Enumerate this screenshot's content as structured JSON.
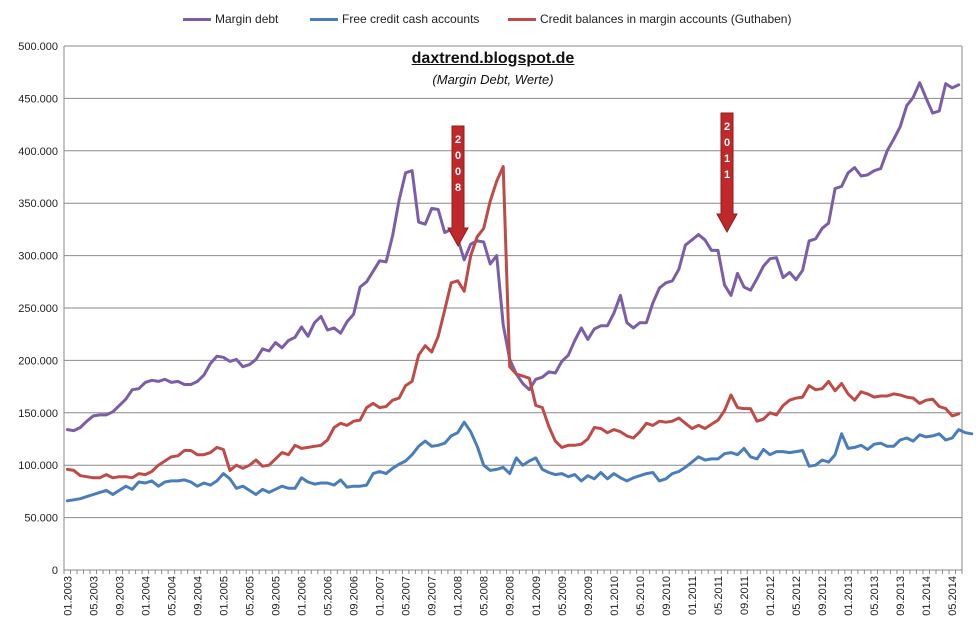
{
  "legend": [
    {
      "name": "Margin debt",
      "color": "#7B5EA7"
    },
    {
      "name": "Free credit cash accounts",
      "color": "#4A7EBB"
    },
    {
      "name": "Credit balances in margin accounts (Guthaben)",
      "color": "#BE4B48"
    }
  ],
  "annotations": {
    "arrow_2008": "2008",
    "arrow_2011": "2011"
  },
  "chart_data": {
    "type": "line",
    "title": "daxtrend.blogspot.de",
    "subtitle": "(Margin Debt, Werte)",
    "ylim": [
      0,
      500000
    ],
    "y_ticks": [
      "0",
      "50.000",
      "100.000",
      "150.000",
      "200.000",
      "250.000",
      "300.000",
      "350.000",
      "400.000",
      "450.000",
      "500.000"
    ],
    "x_tick_labels": [
      "01.2003",
      "05.2003",
      "09.2003",
      "01.2004",
      "05.2004",
      "09.2004",
      "01.2005",
      "05.2005",
      "09.2005",
      "01.2006",
      "05.2006",
      "09.2006",
      "01.2007",
      "05.2007",
      "09.2007",
      "01.2008",
      "05.2008",
      "09.2008",
      "01.2009",
      "05.2009",
      "09.2009",
      "01.2010",
      "05.2010",
      "09.2010",
      "01.2011",
      "05.2011",
      "09.2011",
      "01.2012",
      "05.2012",
      "09.2012",
      "01.2013",
      "05.2013",
      "09.2013",
      "01.2014",
      "05.2014"
    ],
    "x_start": "01.2003",
    "x_end": "08.2014",
    "series": [
      {
        "name": "Margin debt",
        "color": "#7B5EA7",
        "values": [
          134000,
          133000,
          136000,
          142000,
          147000,
          148000,
          148000,
          151000,
          157000,
          163000,
          172000,
          173000,
          179000,
          181000,
          180000,
          182000,
          179000,
          180000,
          177000,
          177000,
          180000,
          186000,
          197000,
          204000,
          203000,
          199000,
          201000,
          194000,
          196000,
          201000,
          211000,
          209000,
          217000,
          212000,
          219000,
          222000,
          232000,
          223000,
          236000,
          242000,
          229000,
          231000,
          226000,
          237000,
          244000,
          270000,
          275000,
          285000,
          295000,
          294000,
          319000,
          353000,
          379000,
          381000,
          332000,
          330000,
          345000,
          344000,
          322000,
          325000,
          316000,
          296000,
          311000,
          314000,
          313000,
          292000,
          300000,
          234000,
          201000,
          187000,
          178000,
          172000,
          182000,
          184000,
          189000,
          188000,
          199000,
          205000,
          219000,
          231000,
          220000,
          230000,
          233000,
          233000,
          245000,
          262000,
          236000,
          231000,
          236000,
          236000,
          255000,
          269000,
          274000,
          276000,
          287000,
          310000,
          315000,
          320000,
          315000,
          305000,
          305000,
          272000,
          262000,
          283000,
          270000,
          267000,
          278000,
          290000,
          297000,
          298000,
          279000,
          284000,
          277000,
          286000,
          314000,
          316000,
          326000,
          331000,
          364000,
          366000,
          379000,
          384000,
          376000,
          377000,
          381000,
          383000,
          400000,
          411000,
          423000,
          443000,
          451000,
          465000,
          450000,
          436000,
          438000,
          464000,
          460000,
          463000
        ]
      },
      {
        "name": "Free credit cash accounts",
        "color": "#4A7EBB",
        "values": [
          66000,
          67000,
          68000,
          70000,
          72000,
          74000,
          76000,
          72000,
          76000,
          80000,
          77000,
          84000,
          83000,
          85000,
          80000,
          84000,
          85000,
          85000,
          86000,
          84000,
          80000,
          83000,
          81000,
          85000,
          92000,
          87000,
          78000,
          80000,
          76000,
          72000,
          77000,
          74000,
          77000,
          80000,
          78000,
          78000,
          88000,
          84000,
          82000,
          83000,
          83000,
          81000,
          86000,
          79000,
          80000,
          80000,
          81000,
          92000,
          94000,
          92000,
          97000,
          101000,
          104000,
          110000,
          118000,
          123000,
          118000,
          119000,
          121000,
          128000,
          131000,
          141000,
          132000,
          118000,
          100000,
          95000,
          96000,
          98000,
          92000,
          107000,
          100000,
          104000,
          107000,
          96000,
          93000,
          91000,
          92000,
          89000,
          91000,
          85000,
          90000,
          87000,
          93000,
          87000,
          92000,
          88000,
          85000,
          88000,
          90000,
          92000,
          93000,
          85000,
          87000,
          92000,
          94000,
          98000,
          103000,
          108000,
          105000,
          106000,
          106000,
          111000,
          112000,
          110000,
          116000,
          108000,
          106000,
          115000,
          110000,
          113000,
          113000,
          112000,
          113000,
          114000,
          99000,
          100000,
          105000,
          103000,
          110000,
          130000,
          116000,
          117000,
          119000,
          115000,
          120000,
          121000,
          118000,
          118000,
          124000,
          126000,
          123000,
          129000,
          127000,
          128000,
          130000,
          124000,
          126000,
          134000,
          131000,
          130000
        ]
      },
      {
        "name": "Credit balances in margin accounts (Guthaben)",
        "color": "#BE4B48",
        "values": [
          96000,
          95000,
          90000,
          89000,
          88000,
          88000,
          91000,
          88000,
          89000,
          89000,
          88000,
          92000,
          91000,
          94000,
          100000,
          104000,
          108000,
          109000,
          114000,
          114000,
          110000,
          110000,
          112000,
          117000,
          115000,
          95000,
          100000,
          97000,
          100000,
          105000,
          99000,
          100000,
          106000,
          112000,
          110000,
          119000,
          116000,
          117000,
          118000,
          119000,
          124000,
          136000,
          140000,
          138000,
          142000,
          143000,
          155000,
          159000,
          155000,
          156000,
          162000,
          164000,
          176000,
          180000,
          205000,
          214000,
          208000,
          223000,
          248000,
          274000,
          276000,
          266000,
          300000,
          318000,
          326000,
          352000,
          371000,
          385000,
          194000,
          187000,
          185000,
          183000,
          157000,
          155000,
          137000,
          123000,
          117000,
          119000,
          119000,
          120000,
          125000,
          136000,
          135000,
          131000,
          134000,
          132000,
          128000,
          126000,
          132000,
          140000,
          138000,
          142000,
          141000,
          142000,
          145000,
          140000,
          135000,
          138000,
          135000,
          139000,
          143000,
          152000,
          167000,
          155000,
          154000,
          154000,
          142000,
          144000,
          150000,
          148000,
          157000,
          162000,
          164000,
          165000,
          176000,
          172000,
          173000,
          180000,
          171000,
          178000,
          168000,
          162000,
          170000,
          168000,
          165000,
          166000,
          166000,
          168000,
          167000,
          165000,
          164000,
          159000,
          162000,
          163000,
          156000,
          154000,
          147000,
          149000
        ]
      }
    ]
  }
}
